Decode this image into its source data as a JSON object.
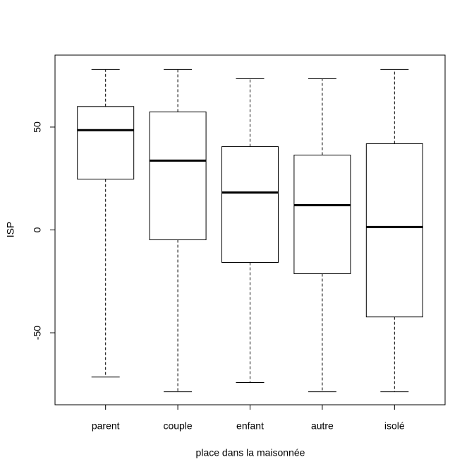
{
  "chart_data": {
    "type": "box",
    "x_label": "place dans la maisonnée",
    "y_label": "ISP",
    "categories": [
      "parent",
      "couple",
      "enfant",
      "autre",
      "isolé"
    ],
    "whisker_high": [
      78,
      78,
      73.5,
      73.5,
      78
    ],
    "q3": [
      60,
      57.4,
      40.5,
      36.4,
      41.9
    ],
    "median": [
      48.5,
      33.7,
      18.2,
      12,
      1.4
    ],
    "q1": [
      24.7,
      -4.8,
      -15.8,
      -21.3,
      -42.3
    ],
    "whisker_low": [
      -71.5,
      -78.7,
      -74.2,
      -78.7,
      -78.7
    ],
    "color": "#000000",
    "ylim": [
      -85,
      85
    ],
    "yticks": [
      -50,
      0,
      50
    ],
    "grid": false
  }
}
